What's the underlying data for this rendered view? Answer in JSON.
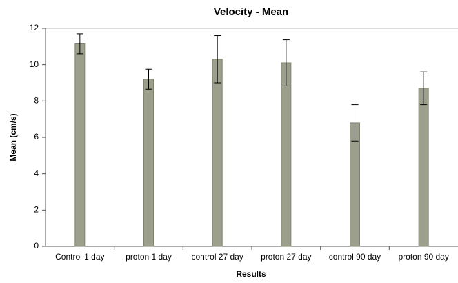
{
  "chart_data": {
    "type": "bar",
    "title": "Velocity - Mean",
    "x_label": "Results",
    "y_label": "Mean (cm/s)",
    "categories": [
      "Control 1 day",
      "proton 1 day",
      "control 27 day",
      "proton 27 day",
      "control 90 day",
      "proton 90 day"
    ],
    "values": [
      11.15,
      9.2,
      10.3,
      10.1,
      6.8,
      8.7
    ],
    "errors": [
      0.55,
      0.55,
      1.3,
      1.27,
      1.0,
      0.9
    ],
    "color": "#9c9f8c",
    "ylim": [
      0,
      12
    ],
    "yticks": [
      0,
      2,
      4,
      6,
      8,
      10,
      12
    ],
    "grid": false
  }
}
